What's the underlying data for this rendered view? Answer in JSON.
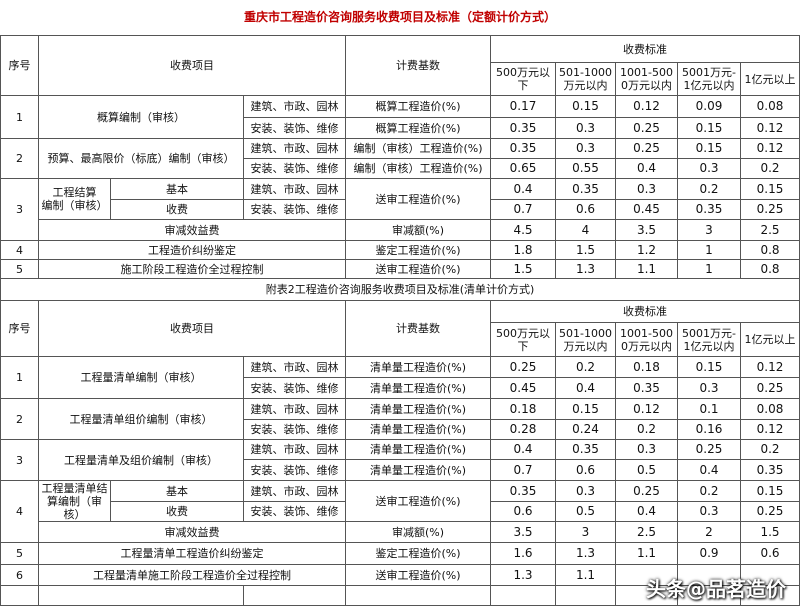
{
  "title": "重庆市工程造价咨询服务收费项目及标准（定额计价方式）",
  "table1": {
    "header": {
      "no": "序号",
      "item": "收费项目",
      "basis": "计费基数",
      "standard": "收费标准",
      "ranges": [
        "500万元以下",
        "501-1000万元以内",
        "1001-5000万元以内",
        "5001万元-1亿元以内",
        "1亿元以上"
      ]
    },
    "rows": [
      {
        "no": "1",
        "item": "概算编制（审核）",
        "categories": [
          "建筑、市政、园林",
          "安装、装饰、维修"
        ],
        "bases": [
          "概算工程造价(%)",
          "概算工程造价(%)"
        ],
        "values": [
          [
            0.17,
            0.15,
            0.12,
            0.09,
            0.08
          ],
          [
            0.35,
            0.3,
            0.25,
            0.15,
            0.12
          ]
        ]
      },
      {
        "no": "2",
        "item": "预算、最高限价（标底）编制（审核）",
        "categories": [
          "建筑、市政、园林",
          "安装、装饰、维修"
        ],
        "bases": [
          "编制（审核）工程造价(%)",
          "编制（审核）工程造价(%)"
        ],
        "values": [
          [
            0.35,
            0.3,
            0.25,
            0.15,
            0.12
          ],
          [
            0.65,
            0.55,
            0.4,
            0.3,
            0.2
          ]
        ]
      },
      {
        "no": "3",
        "item": [
          "工程结算",
          "编制（审核）"
        ],
        "sub": [
          "基本",
          "收费"
        ],
        "categories": [
          "建筑、市政、园林",
          "安装、装饰、维修"
        ],
        "basis": "送审工程造价(%)",
        "values": [
          [
            0.4,
            0.35,
            0.3,
            0.2,
            0.15
          ],
          [
            0.7,
            0.6,
            0.45,
            0.35,
            0.25
          ]
        ],
        "deduction": {
          "item": "审减效益费",
          "basis": "审减额(%)",
          "values": [
            4.5,
            4,
            3.5,
            3,
            2.5
          ]
        }
      },
      {
        "no": "4",
        "item": "工程造价纠纷鉴定",
        "basis": "鉴定工程造价(%)",
        "values": [
          1.8,
          1.5,
          1.2,
          1,
          0.8
        ]
      },
      {
        "no": "5",
        "item": "施工阶段工程造价全过程控制",
        "basis": "送审工程造价(%)",
        "values": [
          1.5,
          1.3,
          1.1,
          1,
          0.8
        ]
      }
    ]
  },
  "table2": {
    "title": "附表2工程造价咨询服务收费项目及标准(清单计价方式)",
    "header": {
      "no": "序号",
      "item": "收费项目",
      "basis": "计费基数",
      "standard": "收费标准",
      "ranges": [
        "500万元以下",
        "501-1000万元以内",
        "1001-5000万元以内",
        "5001万元-1亿元以内",
        "1亿元以上"
      ]
    },
    "rows": [
      {
        "no": "1",
        "item": "工程量清单编制（审核）",
        "categories": [
          "建筑、市政、园林",
          "安装、装饰、维修"
        ],
        "bases": [
          "清单量工程造价(%)",
          "清单量工程造价(%)"
        ],
        "values": [
          [
            0.25,
            0.2,
            0.18,
            0.15,
            0.12
          ],
          [
            0.45,
            0.4,
            0.35,
            0.3,
            0.25
          ]
        ]
      },
      {
        "no": "2",
        "item": "工程量清单组价编制（审核）",
        "categories": [
          "建筑、市政、园林",
          "安装、装饰、维修"
        ],
        "bases": [
          "清单量工程造价(%)",
          "清单量工程造价(%)"
        ],
        "values": [
          [
            0.18,
            0.15,
            0.12,
            0.1,
            0.08
          ],
          [
            0.28,
            0.24,
            0.2,
            0.16,
            0.12
          ]
        ]
      },
      {
        "no": "3",
        "item": "工程量清单及组价编制（审核）",
        "categories": [
          "建筑、市政、园林",
          "安装、装饰、维修"
        ],
        "bases": [
          "清单量工程造价(%)",
          "清单量工程造价(%)"
        ],
        "values": [
          [
            0.4,
            0.35,
            0.3,
            0.25,
            0.2
          ],
          [
            0.7,
            0.6,
            0.5,
            0.4,
            0.35
          ]
        ]
      },
      {
        "no": "4",
        "item": [
          "工程量清单结",
          "算编制（审核）"
        ],
        "sub": [
          "基本",
          "收费"
        ],
        "categories": [
          "建筑、市政、园林",
          "安装、装饰、维修"
        ],
        "basis": "送审工程造价(%)",
        "values": [
          [
            0.35,
            0.3,
            0.25,
            0.2,
            0.15
          ],
          [
            0.6,
            0.5,
            0.4,
            0.3,
            0.25
          ]
        ],
        "deduction": {
          "item": "审减效益费",
          "basis": "审减额(%)",
          "values": [
            3.5,
            3,
            2.5,
            2,
            1.5
          ]
        }
      },
      {
        "no": "5",
        "item": "工程量清单工程造价纠纷鉴定",
        "basis": "鉴定工程造价(%)",
        "values": [
          1.6,
          1.3,
          1.1,
          0.9,
          0.6
        ]
      },
      {
        "no": "6",
        "item": "工程量清单施工阶段工程造价全过程控制",
        "basis": "送审工程造价(%)",
        "values": [
          1.3,
          1.1,
          null,
          null,
          null
        ]
      }
    ]
  },
  "watermark": "头条@品茗造价"
}
